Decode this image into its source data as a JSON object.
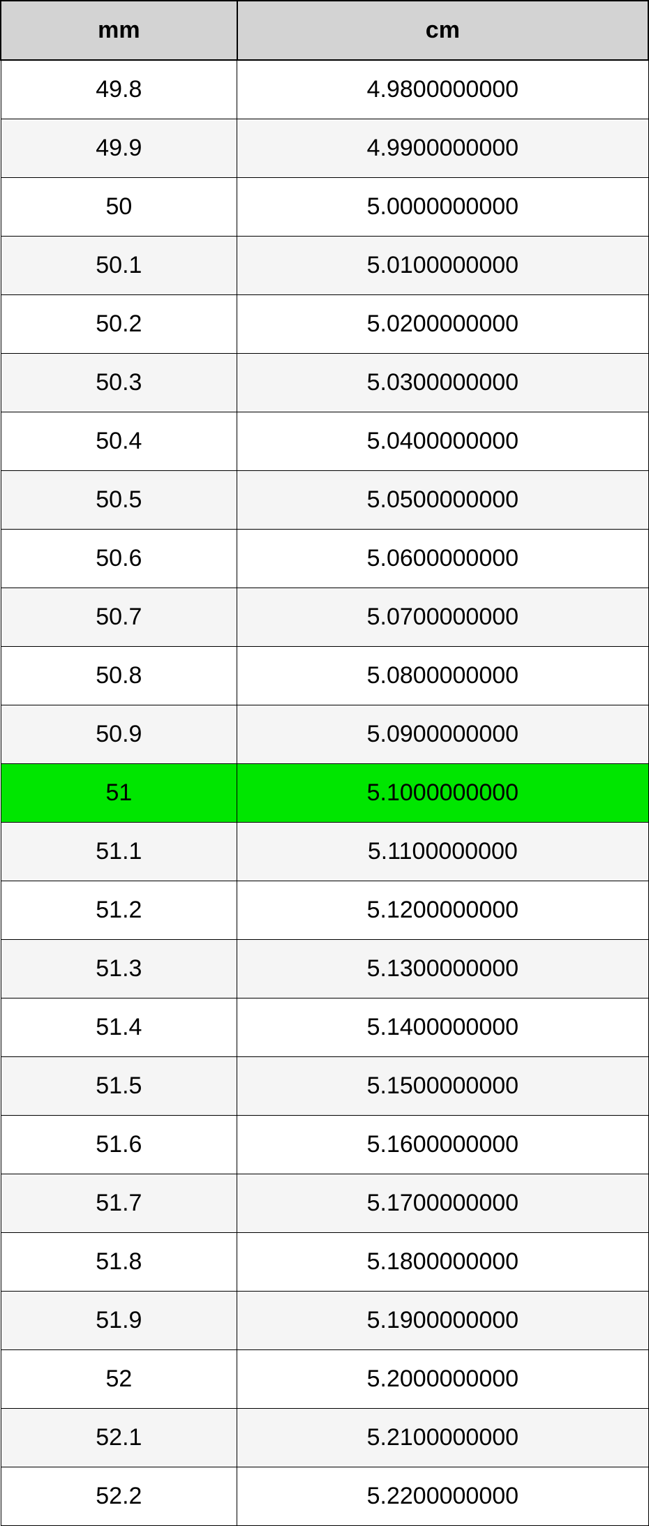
{
  "table": {
    "type": "table",
    "columns": [
      {
        "label": "mm",
        "width_pct": 36.5,
        "align": "center"
      },
      {
        "label": "cm",
        "width_pct": 63.5,
        "align": "center"
      }
    ],
    "header_bg": "#d3d3d3",
    "header_fontsize": 34,
    "header_fontweight": "bold",
    "cell_fontsize": 34,
    "border_color": "#000000",
    "row_bg_odd": "#ffffff",
    "row_bg_even": "#f5f5f5",
    "highlight_bg": "#00e600",
    "text_color": "#000000",
    "highlighted_row_index": 12,
    "rows": [
      {
        "mm": "49.8",
        "cm": "4.9800000000"
      },
      {
        "mm": "49.9",
        "cm": "4.9900000000"
      },
      {
        "mm": "50",
        "cm": "5.0000000000"
      },
      {
        "mm": "50.1",
        "cm": "5.0100000000"
      },
      {
        "mm": "50.2",
        "cm": "5.0200000000"
      },
      {
        "mm": "50.3",
        "cm": "5.0300000000"
      },
      {
        "mm": "50.4",
        "cm": "5.0400000000"
      },
      {
        "mm": "50.5",
        "cm": "5.0500000000"
      },
      {
        "mm": "50.6",
        "cm": "5.0600000000"
      },
      {
        "mm": "50.7",
        "cm": "5.0700000000"
      },
      {
        "mm": "50.8",
        "cm": "5.0800000000"
      },
      {
        "mm": "50.9",
        "cm": "5.0900000000"
      },
      {
        "mm": "51",
        "cm": "5.1000000000"
      },
      {
        "mm": "51.1",
        "cm": "5.1100000000"
      },
      {
        "mm": "51.2",
        "cm": "5.1200000000"
      },
      {
        "mm": "51.3",
        "cm": "5.1300000000"
      },
      {
        "mm": "51.4",
        "cm": "5.1400000000"
      },
      {
        "mm": "51.5",
        "cm": "5.1500000000"
      },
      {
        "mm": "51.6",
        "cm": "5.1600000000"
      },
      {
        "mm": "51.7",
        "cm": "5.1700000000"
      },
      {
        "mm": "51.8",
        "cm": "5.1800000000"
      },
      {
        "mm": "51.9",
        "cm": "5.1900000000"
      },
      {
        "mm": "52",
        "cm": "5.2000000000"
      },
      {
        "mm": "52.1",
        "cm": "5.2100000000"
      },
      {
        "mm": "52.2",
        "cm": "5.2200000000"
      }
    ]
  }
}
